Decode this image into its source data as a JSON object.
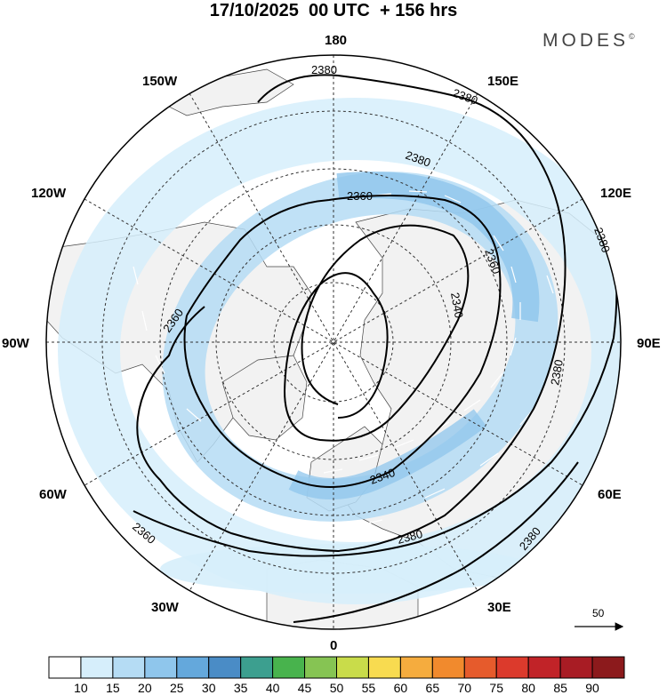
{
  "header": {
    "title": "17/10/2025  00 UTC  + 156 hrs",
    "brand": "MODES",
    "brand_mark": "©"
  },
  "map": {
    "projection": "north-polar-stereographic",
    "longitude_labels": {
      "top": "180",
      "top_left": "150W",
      "top_right": "150E",
      "upper_left": "120W",
      "upper_right": "120E",
      "left": "90W",
      "right": "90E",
      "lower_left": "60W",
      "lower_right": "60E",
      "bottom_left": "30W",
      "bottom_right": "30E",
      "bottom": "0"
    },
    "contour_labels": {
      "c1": "2380",
      "c2": "2380",
      "c3": "2380",
      "c4": "2380",
      "c5": "2380",
      "c6": "2380",
      "c7": "2380",
      "c8": "2360",
      "c9": "2360",
      "c10": "2360",
      "c11": "2360",
      "c12": "2340",
      "c13": "2340"
    },
    "wind_reference_value": "50",
    "colors": {
      "land": "#f2f2f2",
      "ocean": "#ffffff",
      "wind_15": "#d6eefb",
      "wind_20": "#b5dcf4",
      "wind_25": "#8fc6ec"
    }
  },
  "legend": {
    "ticks": [
      "10",
      "15",
      "20",
      "25",
      "30",
      "35",
      "40",
      "45",
      "50",
      "55",
      "60",
      "65",
      "70",
      "75",
      "80",
      "85",
      "90"
    ],
    "colors": [
      "#ffffff",
      "#d6eefb",
      "#b5dcf4",
      "#8fc6ec",
      "#64a8dc",
      "#4a8cc6",
      "#3c9f8f",
      "#48b34d",
      "#86c453",
      "#c9dc4a",
      "#f8db50",
      "#f5ac3e",
      "#f18a2d",
      "#e65b2c",
      "#dc3a2c",
      "#c12328",
      "#a81c24",
      "#8c1a1c"
    ]
  }
}
